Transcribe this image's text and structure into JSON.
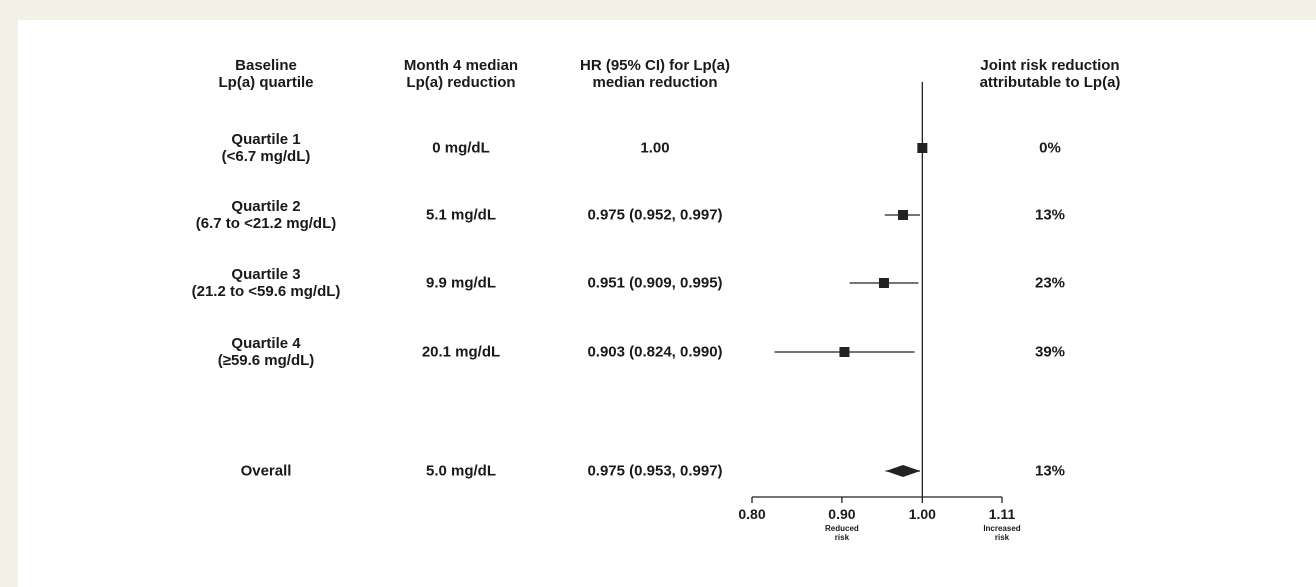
{
  "colors": {
    "background": "#f3f1e6",
    "panel": "#ffffff",
    "marker": "#222222",
    "line": "#222222"
  },
  "headers": {
    "quartile": [
      "Baseline",
      "Lp(a) quartile"
    ],
    "reduction": [
      "Month 4 median",
      "Lp(a) reduction"
    ],
    "hr": [
      "HR (95% CI) for Lp(a)",
      "median reduction"
    ],
    "joint": [
      "Joint risk reduction",
      "attributable to Lp(a)"
    ]
  },
  "rows": [
    {
      "label": [
        "Quartile 1",
        "(<6.7 mg/dL)"
      ],
      "reduction": "0 mg/dL",
      "hr_text": "1.00",
      "joint": "0%"
    },
    {
      "label": [
        "Quartile 2",
        "(6.7 to <21.2 mg/dL)"
      ],
      "reduction": "5.1 mg/dL",
      "hr_text": "0.975 (0.952, 0.997)",
      "joint": "13%"
    },
    {
      "label": [
        "Quartile 3",
        "(21.2 to <59.6 mg/dL)"
      ],
      "reduction": "9.9 mg/dL",
      "hr_text": "0.951 (0.909, 0.995)",
      "joint": "23%"
    },
    {
      "label": [
        "Quartile 4",
        "(≥59.6 mg/dL)"
      ],
      "reduction": "20.1 mg/dL",
      "hr_text": "0.903 (0.824, 0.990)",
      "joint": "39%"
    },
    {
      "label": [
        "Overall"
      ],
      "reduction": "5.0 mg/dL",
      "hr_text": "0.975 (0.953, 0.997)",
      "joint": "13%"
    }
  ],
  "chart_data": {
    "type": "forest",
    "x_scale": "log",
    "xlim": [
      0.8,
      1.11
    ],
    "ticks": [
      {
        "value": 0.8,
        "label": "0.80"
      },
      {
        "value": 0.9,
        "label": "0.90"
      },
      {
        "value": 1.0,
        "label": "1.00"
      },
      {
        "value": 1.11,
        "label": "1.11"
      }
    ],
    "tick_sublabels": [
      {
        "value": 0.9,
        "lines": [
          "Reduced",
          "risk"
        ]
      },
      {
        "value": 1.11,
        "lines": [
          "Increased",
          "risk"
        ]
      }
    ],
    "reference_line": 1.0,
    "estimates": [
      {
        "category": "Quartile 1",
        "hr": 1.0,
        "lower": null,
        "upper": null,
        "marker": "square"
      },
      {
        "category": "Quartile 2",
        "hr": 0.975,
        "lower": 0.952,
        "upper": 0.997,
        "marker": "square"
      },
      {
        "category": "Quartile 3",
        "hr": 0.951,
        "lower": 0.909,
        "upper": 0.995,
        "marker": "square"
      },
      {
        "category": "Quartile 4",
        "hr": 0.903,
        "lower": 0.824,
        "upper": 0.99,
        "marker": "square"
      },
      {
        "category": "Overall",
        "hr": 0.975,
        "lower": 0.953,
        "upper": 0.997,
        "marker": "diamond"
      }
    ]
  }
}
